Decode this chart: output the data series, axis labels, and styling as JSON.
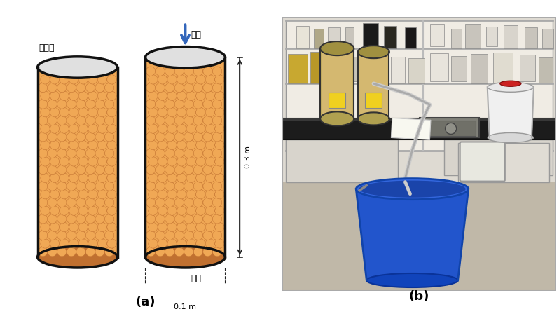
{
  "fig_width": 7.98,
  "fig_height": 4.48,
  "dpi": 100,
  "background_color": "#ffffff",
  "label_a": "(a)",
  "label_b": "(b)",
  "label_fontsize": 13,
  "label_fontweight": "bold",
  "text_yubip": "예비용",
  "text_yuip": "유입",
  "text_yuchul": "유출",
  "text_03m": "0.3 m",
  "text_01m": "0.1 m",
  "korean_fontsize": 9,
  "dim_fontsize": 8,
  "bead_color": "#F0A855",
  "bead_edge": "#C07030",
  "fill_color": "#F0A855",
  "cyl_outline": "#111111",
  "top_ellipse_fill": "#e0e0e0",
  "arrow_color": "#3366BB",
  "dim_line_color": "#222222",
  "photo_bg": "#b8b0a0",
  "shelf_bg": "#e8e4dc",
  "bench_color": "#1a1a1a",
  "bench_leg_color": "#d8d4cc",
  "cyl_photo_color": "#c8b868",
  "bucket_color": "#2255cc",
  "jug_color": "#f0f0f0",
  "tube_color": "#cccccc",
  "pump_color": "#888880"
}
